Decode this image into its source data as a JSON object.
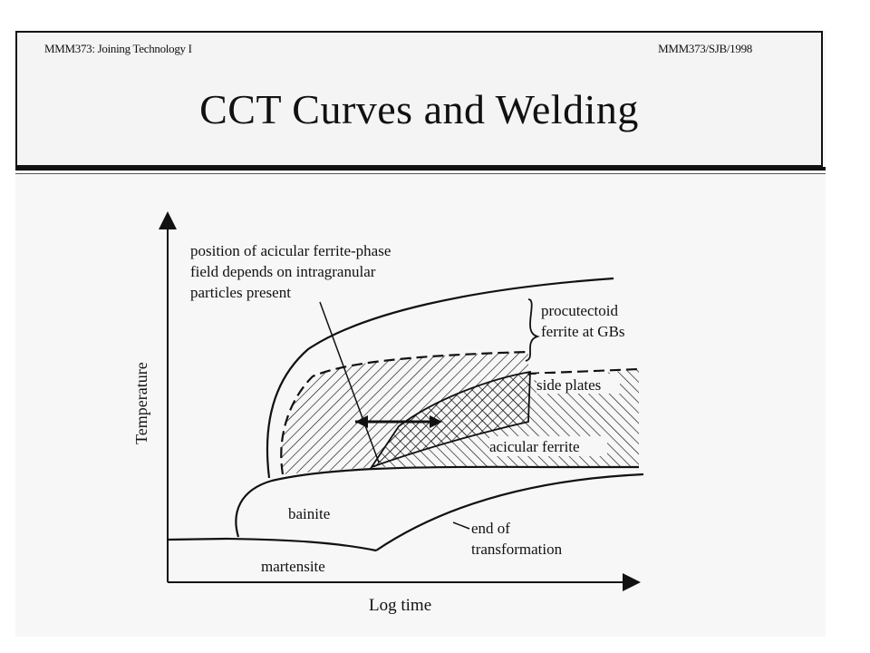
{
  "header": {
    "course_left": "MMM373: Joining Technology I",
    "course_right": "MMM373/SJB/1998",
    "title": "CCT Curves and Welding"
  },
  "diagram": {
    "y_axis_label": "Temperature",
    "x_axis_label": "Log time",
    "note_line1": "position of acicular ferrite-phase",
    "note_line2": "field depends on intragranular",
    "note_line3": "particles present",
    "procutectoid_line1": "procutectoid",
    "procutectoid_line2": "ferrite at GBs",
    "side_plates": "side plates",
    "acicular_ferrite": "acicular ferrite",
    "bainite": "bainite",
    "end_line1": "end of",
    "end_line2": "transformation",
    "martensite": "martensite"
  }
}
